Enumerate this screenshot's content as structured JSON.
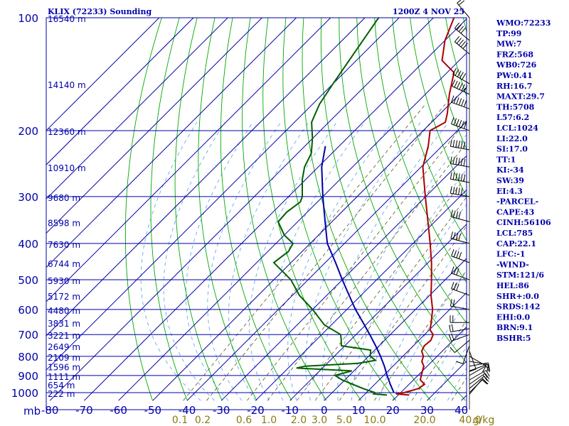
{
  "chart_data": {
    "type": "line",
    "title": "KLIX (72233) Sounding",
    "date_label": "1200Z  4 NOV 25",
    "xlabel": "",
    "ylabel": "mb",
    "y_axis_unit": "mb",
    "xlim": [
      -80,
      40
    ],
    "ylim": [
      1050,
      100
    ],
    "y_scale": "log",
    "x_skew": "temperature lines skewed 45 degrees",
    "grid": true,
    "pressure_ticks": [
      "100",
      "200",
      "300",
      "400",
      "500",
      "600",
      "700",
      "800",
      "900",
      "1000"
    ],
    "temperature_ticks": [
      "-80",
      "-70",
      "-60",
      "-50",
      "-40",
      "-30",
      "-20",
      "-10",
      "0",
      "10",
      "20",
      "30",
      "40"
    ],
    "height_labels": [
      {
        "p": 100,
        "label": "16540 m"
      },
      {
        "p": 150,
        "label": "14140 m"
      },
      {
        "p": 200,
        "label": "12360 m"
      },
      {
        "p": 250,
        "label": "10910 m"
      },
      {
        "p": 300,
        "label": "9680 m"
      },
      {
        "p": 350,
        "label": "8598 m"
      },
      {
        "p": 400,
        "label": "7630 m"
      },
      {
        "p": 450,
        "label": "6744 m"
      },
      {
        "p": 500,
        "label": "5930 m"
      },
      {
        "p": 550,
        "label": "5172 m"
      },
      {
        "p": 600,
        "label": "4480 m"
      },
      {
        "p": 650,
        "label": "3831 m"
      },
      {
        "p": 700,
        "label": "3221 m"
      },
      {
        "p": 750,
        "label": "2649 m"
      },
      {
        "p": 800,
        "label": "2109 m"
      },
      {
        "p": 850,
        "label": "1596 m"
      },
      {
        "p": 900,
        "label": "1111 m"
      },
      {
        "p": 950,
        "label": "654 m"
      },
      {
        "p": 1000,
        "label": "222 m"
      }
    ],
    "mixing_ratio_labels": [
      "0.1",
      "0.2",
      "0.6",
      "1.0",
      "2.0",
      "3.0",
      "5.0",
      "10.0",
      "20.0",
      "40.0"
    ],
    "mixing_ratio_unit": "g/kg",
    "mixing_ratio_values": [
      0.1,
      0.2,
      0.6,
      1.0,
      2.0,
      3.0,
      5.0,
      10.0,
      20.0,
      40.0
    ],
    "series": [
      {
        "name": "temperature",
        "color": "#aa0000",
        "points": [
          [
            1015,
            23.2
          ],
          [
            1008,
            19
          ],
          [
            1000,
            21
          ],
          [
            975,
            24
          ],
          [
            950,
            24.5
          ],
          [
            925,
            22
          ],
          [
            900,
            21
          ],
          [
            875,
            20
          ],
          [
            850,
            19
          ],
          [
            825,
            17
          ],
          [
            800,
            16
          ],
          [
            775,
            14
          ],
          [
            750,
            13.2
          ],
          [
            725,
            13.5
          ],
          [
            700,
            12.5
          ],
          [
            680,
            10.2
          ],
          [
            650,
            8.4
          ],
          [
            600,
            5.0
          ],
          [
            550,
            0.4
          ],
          [
            500,
            -4
          ],
          [
            450,
            -9
          ],
          [
            400,
            -15
          ],
          [
            350,
            -22
          ],
          [
            300,
            -30.1
          ],
          [
            250,
            -39.5
          ],
          [
            220,
            -44
          ],
          [
            200,
            -48
          ],
          [
            190,
            -46
          ],
          [
            180,
            -48
          ],
          [
            160,
            -53
          ],
          [
            140,
            -58
          ],
          [
            130,
            -65
          ],
          [
            115,
            -70
          ],
          [
            100,
            -74
          ]
        ]
      },
      {
        "name": "dewpoint",
        "color": "#006000",
        "points": [
          [
            1015,
            16.7
          ],
          [
            1008,
            12.5
          ],
          [
            1000,
            12.5
          ],
          [
            975,
            7.8
          ],
          [
            950,
            3.5
          ],
          [
            925,
            -0.8
          ],
          [
            900,
            -4.2
          ],
          [
            875,
            -0.6
          ],
          [
            860,
            -17.6
          ],
          [
            850,
            -15.6
          ],
          [
            835,
            -1
          ],
          [
            820,
            3.2
          ],
          [
            800,
            0.5
          ],
          [
            770,
            -1.2
          ],
          [
            750,
            -11
          ],
          [
            720,
            -13
          ],
          [
            700,
            -14.5
          ],
          [
            660,
            -22
          ],
          [
            600,
            -30
          ],
          [
            550,
            -38
          ],
          [
            500,
            -45
          ],
          [
            450,
            -55
          ],
          [
            420,
            -54
          ],
          [
            400,
            -55
          ],
          [
            380,
            -60
          ],
          [
            350,
            -65.7
          ],
          [
            330,
            -66
          ],
          [
            310,
            -65
          ],
          [
            300,
            -66
          ],
          [
            270,
            -71
          ],
          [
            250,
            -74
          ],
          [
            230,
            -76
          ],
          [
            210,
            -80
          ],
          [
            190,
            -85
          ],
          [
            170,
            -88
          ],
          [
            150,
            -90
          ],
          [
            100,
            -96
          ]
        ]
      },
      {
        "name": "parcel path",
        "color": "#0000aa",
        "points": [
          [
            1000,
            18
          ],
          [
            950,
            14.5
          ],
          [
            900,
            11
          ],
          [
            850,
            7.5
          ],
          [
            800,
            3.5
          ],
          [
            750,
            -1
          ],
          [
            700,
            -6
          ],
          [
            650,
            -11.5
          ],
          [
            600,
            -17.5
          ],
          [
            550,
            -23.5
          ],
          [
            500,
            -30
          ],
          [
            450,
            -37
          ],
          [
            400,
            -45
          ],
          [
            350,
            -52
          ],
          [
            300,
            -60
          ],
          [
            250,
            -69
          ],
          [
            220,
            -74
          ]
        ]
      }
    ],
    "wind_barbs": [
      {
        "p": 1010,
        "dir": 40,
        "spd": 10
      },
      {
        "p": 1000,
        "dir": 45,
        "spd": 10
      },
      {
        "p": 975,
        "dir": 50,
        "spd": 15
      },
      {
        "p": 950,
        "dir": 55,
        "spd": 15
      },
      {
        "p": 925,
        "dir": 60,
        "spd": 15
      },
      {
        "p": 900,
        "dir": 60,
        "spd": 10
      },
      {
        "p": 875,
        "dir": 70,
        "spd": 10
      },
      {
        "p": 850,
        "dir": 80,
        "spd": 10
      },
      {
        "p": 825,
        "dir": 100,
        "spd": 10
      },
      {
        "p": 800,
        "dir": 120,
        "spd": 10
      },
      {
        "p": 775,
        "dir": 160,
        "spd": 10
      },
      {
        "p": 750,
        "dir": 200,
        "spd": 10
      },
      {
        "p": 725,
        "dir": 230,
        "spd": 10
      },
      {
        "p": 700,
        "dir": 250,
        "spd": 15
      },
      {
        "p": 675,
        "dir": 260,
        "spd": 15
      },
      {
        "p": 650,
        "dir": 270,
        "spd": 20
      },
      {
        "p": 600,
        "dir": 280,
        "spd": 20
      },
      {
        "p": 550,
        "dir": 290,
        "spd": 25
      },
      {
        "p": 500,
        "dir": 290,
        "spd": 30
      },
      {
        "p": 450,
        "dir": 290,
        "spd": 35
      },
      {
        "p": 400,
        "dir": 285,
        "spd": 40
      },
      {
        "p": 350,
        "dir": 285,
        "spd": 40
      },
      {
        "p": 300,
        "dir": 280,
        "spd": 50
      },
      {
        "p": 275,
        "dir": 280,
        "spd": 55
      },
      {
        "p": 250,
        "dir": 280,
        "spd": 60
      },
      {
        "p": 225,
        "dir": 280,
        "spd": 60
      },
      {
        "p": 200,
        "dir": 290,
        "spd": 60
      },
      {
        "p": 175,
        "dir": 290,
        "spd": 60
      },
      {
        "p": 160,
        "dir": 295,
        "spd": 55
      },
      {
        "p": 150,
        "dir": 300,
        "spd": 50
      },
      {
        "p": 125,
        "dir": 310,
        "spd": 45
      },
      {
        "p": 115,
        "dir": 310,
        "spd": 40
      },
      {
        "p": 100,
        "dir": 320,
        "spd": 20
      }
    ]
  },
  "indices": [
    "WMO:72233",
    "TP:99",
    "MW:7",
    "FRZ:568",
    "WB0:726",
    "PW:0.41",
    "RH:16.7",
    "MAXT:29.7",
    "TH:5708",
    "L57:6.2",
    "LCL:1024",
    "LI:22.0",
    "SI:17.0",
    "TT:1",
    "KI:-34",
    "SW:39",
    "EI:4.3",
    "-PARCEL-",
    "CAPE:43",
    "CINH:56106",
    "LCL:785",
    "CAP:22.1",
    "LFC:-1",
    "-WIND-",
    "STM:121/6",
    "HEL:86",
    "SHR+:0.0",
    "SRDS:142",
    "EHI:0.0",
    "BRN:9.1",
    "BSHR:5"
  ],
  "colors": {
    "grid": "#0000aa",
    "dry_adiabat": "#00aa00",
    "moist_adiabat": "#66aaee",
    "mixing_ratio": "#555522",
    "temperature": "#aa0000",
    "dewpoint": "#006000",
    "parcel": "#0000aa",
    "labels": "#0000aa",
    "mixing_ratio_label": "#8a7a10",
    "wind": "#000000"
  }
}
